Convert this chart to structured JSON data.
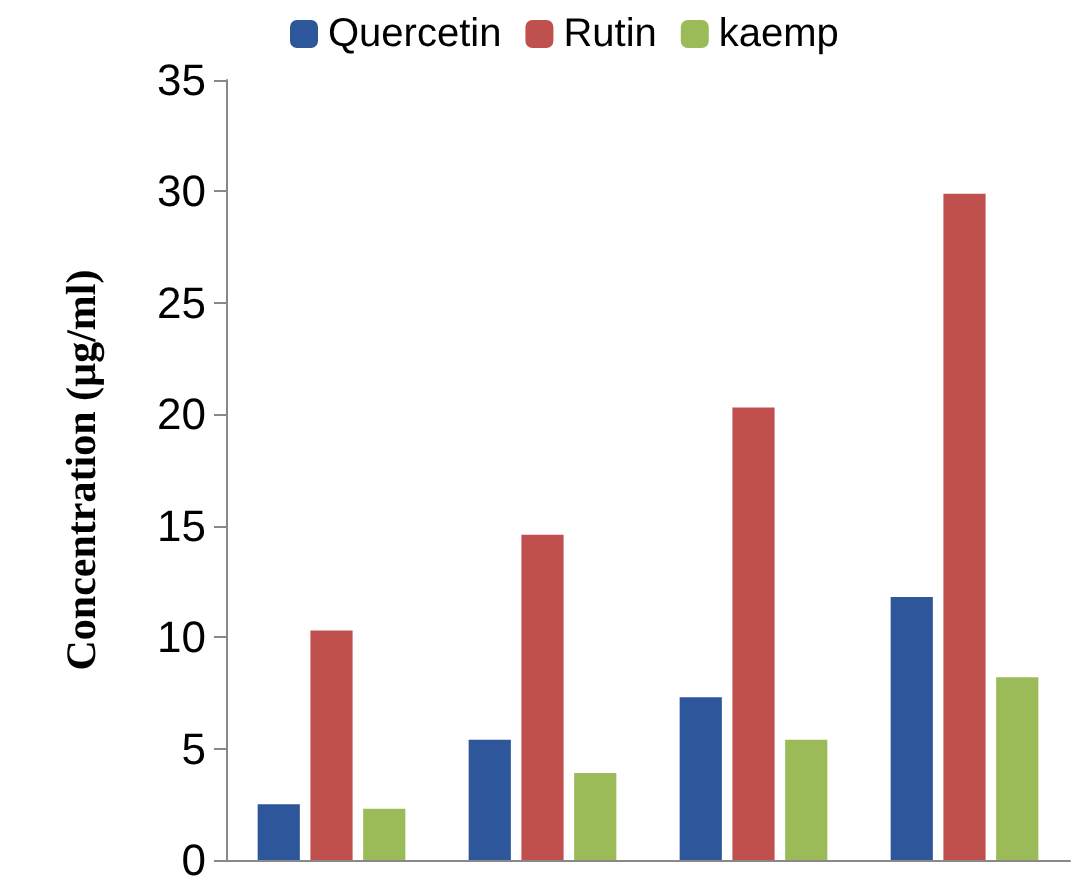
{
  "chart_data": {
    "type": "bar",
    "ylabel": "Concentration (µg/ml)",
    "categories": [
      null,
      null,
      null,
      null
    ],
    "series": [
      {
        "name": "Quercetin",
        "color": "#2e569a",
        "values": [
          2.5,
          5.4,
          7.3,
          11.8
        ]
      },
      {
        "name": "Rutin",
        "color": "#c0504d",
        "values": [
          10.3,
          14.6,
          20.3,
          29.9
        ]
      },
      {
        "name": "kaemp",
        "color": "#9bbb59",
        "values": [
          2.3,
          3.9,
          5.4,
          8.2
        ]
      }
    ],
    "ylim": [
      0,
      35
    ],
    "yticks": [
      0,
      5,
      10,
      15,
      20,
      25,
      30,
      35
    ],
    "grid": false,
    "legend": "top"
  }
}
